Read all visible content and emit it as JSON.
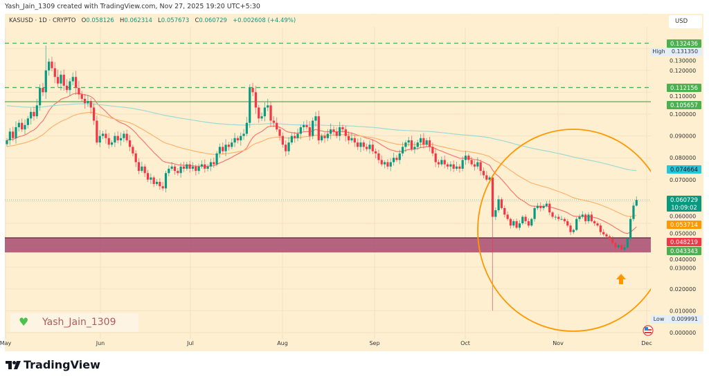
{
  "header": {
    "created_text": "Yash_Jain_1309 created with TradingView.com, Nov 27, 2025 19:20 UTC+5:30"
  },
  "legend": {
    "symbol": "KASUSD · 1D · CRYPTO",
    "o_label": "O",
    "o": "0.058126",
    "h_label": "H",
    "h": "0.062314",
    "l_label": "L",
    "l": "0.057673",
    "c_label": "C",
    "c": "0.060729",
    "change": "+0.002608 (+4.49%)"
  },
  "price_axis": {
    "currency": "USD",
    "ticks": [
      "0.000000",
      "0.010000",
      "0.020000",
      "0.030000",
      "0.040000",
      "0.050000",
      "0.060000",
      "0.070000",
      "0.080000",
      "0.090000",
      "0.100000",
      "0.110000",
      "0.120000",
      "0.130000"
    ],
    "labels": [
      {
        "text": "0.132436",
        "value": 0.132436,
        "color": "#4caf50"
      },
      {
        "text": "0.131350",
        "value": 0.13135,
        "color": "high"
      },
      {
        "text": "0.112156",
        "value": 0.112156,
        "color": "#4caf50"
      },
      {
        "text": "0.105657",
        "value": 0.105657,
        "color": "#4caf50"
      },
      {
        "text": "0.074664",
        "value": 0.074664,
        "color": "#26c6da"
      },
      {
        "text": "0.060729",
        "value": 0.060729,
        "color": "#089981",
        "countdown": "10:09:02"
      },
      {
        "text": "0.053714",
        "value": 0.053714,
        "color": "#ff9800"
      },
      {
        "text": "0.048219",
        "value": 0.048219,
        "color": "#f23645"
      },
      {
        "text": "0.043343",
        "value": 0.043343,
        "color": "#4caf50"
      },
      {
        "text": "0.009991",
        "value": 0.009991,
        "color": "low"
      }
    ],
    "high_label": "High",
    "low_label": "Low"
  },
  "time_axis": {
    "labels": [
      "May",
      "Jun",
      "Jul",
      "Aug",
      "Sep",
      "Oct",
      "Nov",
      "Dec"
    ]
  },
  "watermark": {
    "text": "Yash_Jain_1309",
    "icon": "green-heart-icon"
  },
  "brand": {
    "name": "TradingView"
  },
  "colors": {
    "up": "#089981",
    "down": "#f23645",
    "background": "#fdefd0",
    "zone": "#a3416a",
    "circle": "#ff9800",
    "arrow": "#ff9800",
    "ema_fast": "#f7776f",
    "ema_mid": "#ffb26b",
    "ema_slow": "#9fd9d3"
  },
  "chart_data": {
    "type": "candlestick",
    "symbol": "KASUSD",
    "interval": "1D",
    "start_date": "2025-05-01",
    "ylim": [
      0,
      0.14
    ],
    "closes": [
      0.088,
      0.092,
      0.089,
      0.094,
      0.096,
      0.093,
      0.095,
      0.098,
      0.101,
      0.099,
      0.104,
      0.112,
      0.11,
      0.12,
      0.124,
      0.121,
      0.117,
      0.114,
      0.118,
      0.113,
      0.111,
      0.115,
      0.117,
      0.112,
      0.109,
      0.107,
      0.105,
      0.106,
      0.103,
      0.097,
      0.087,
      0.09,
      0.091,
      0.089,
      0.086,
      0.087,
      0.09,
      0.088,
      0.089,
      0.091,
      0.088,
      0.085,
      0.082,
      0.078,
      0.074,
      0.076,
      0.073,
      0.07,
      0.071,
      0.068,
      0.069,
      0.067,
      0.066,
      0.073,
      0.075,
      0.076,
      0.074,
      0.073,
      0.076,
      0.075,
      0.077,
      0.075,
      0.076,
      0.074,
      0.076,
      0.077,
      0.075,
      0.076,
      0.078,
      0.077,
      0.082,
      0.085,
      0.083,
      0.086,
      0.085,
      0.087,
      0.089,
      0.088,
      0.09,
      0.091,
      0.096,
      0.112,
      0.11,
      0.103,
      0.098,
      0.099,
      0.103,
      0.104,
      0.097,
      0.096,
      0.093,
      0.09,
      0.086,
      0.083,
      0.087,
      0.09,
      0.089,
      0.091,
      0.094,
      0.095,
      0.094,
      0.09,
      0.097,
      0.099,
      0.088,
      0.09,
      0.089,
      0.091,
      0.093,
      0.092,
      0.09,
      0.094,
      0.093,
      0.09,
      0.088,
      0.089,
      0.087,
      0.085,
      0.087,
      0.085,
      0.084,
      0.086,
      0.083,
      0.082,
      0.079,
      0.077,
      0.078,
      0.076,
      0.078,
      0.08,
      0.079,
      0.082,
      0.085,
      0.087,
      0.088,
      0.084,
      0.085,
      0.087,
      0.089,
      0.086,
      0.088,
      0.085,
      0.082,
      0.078,
      0.077,
      0.079,
      0.077,
      0.076,
      0.077,
      0.075,
      0.076,
      0.075,
      0.079,
      0.081,
      0.079,
      0.077,
      0.076,
      0.078,
      0.074,
      0.072,
      0.07,
      0.071,
      0.053,
      0.056,
      0.061,
      0.057,
      0.054,
      0.052,
      0.049,
      0.051,
      0.048,
      0.05,
      0.053,
      0.051,
      0.049,
      0.052,
      0.057,
      0.058,
      0.057,
      0.058,
      0.059,
      0.055,
      0.053,
      0.053,
      0.052,
      0.052,
      0.051,
      0.049,
      0.046,
      0.047,
      0.052,
      0.053,
      0.054,
      0.051,
      0.054,
      0.051,
      0.05,
      0.049,
      0.046,
      0.045,
      0.044,
      0.043,
      0.041,
      0.039,
      0.04,
      0.038,
      0.039,
      0.043,
      0.052,
      0.058126,
      0.060729
    ],
    "last": {
      "open": 0.058126,
      "high": 0.062314,
      "low": 0.057673,
      "close": 0.060729
    },
    "period_high": {
      "date": "2025-05-14",
      "value": 0.13135
    },
    "period_low": {
      "date": "2025-10-10",
      "value": 0.009991
    },
    "moving_averages": [
      {
        "color": "#f7776f",
        "last": 0.048219
      },
      {
        "color": "#ffb26b",
        "last": 0.053714
      },
      {
        "color": "#9fd9d3",
        "last": 0.074664
      }
    ],
    "horizontal_lines": [
      {
        "value": 0.132436,
        "style": "dashed"
      },
      {
        "value": 0.112156,
        "style": "dashed"
      },
      {
        "value": 0.105657,
        "style": "solid"
      }
    ],
    "zone": [
      0.0367,
      0.043343
    ],
    "current_price_line": 0.060729
  }
}
